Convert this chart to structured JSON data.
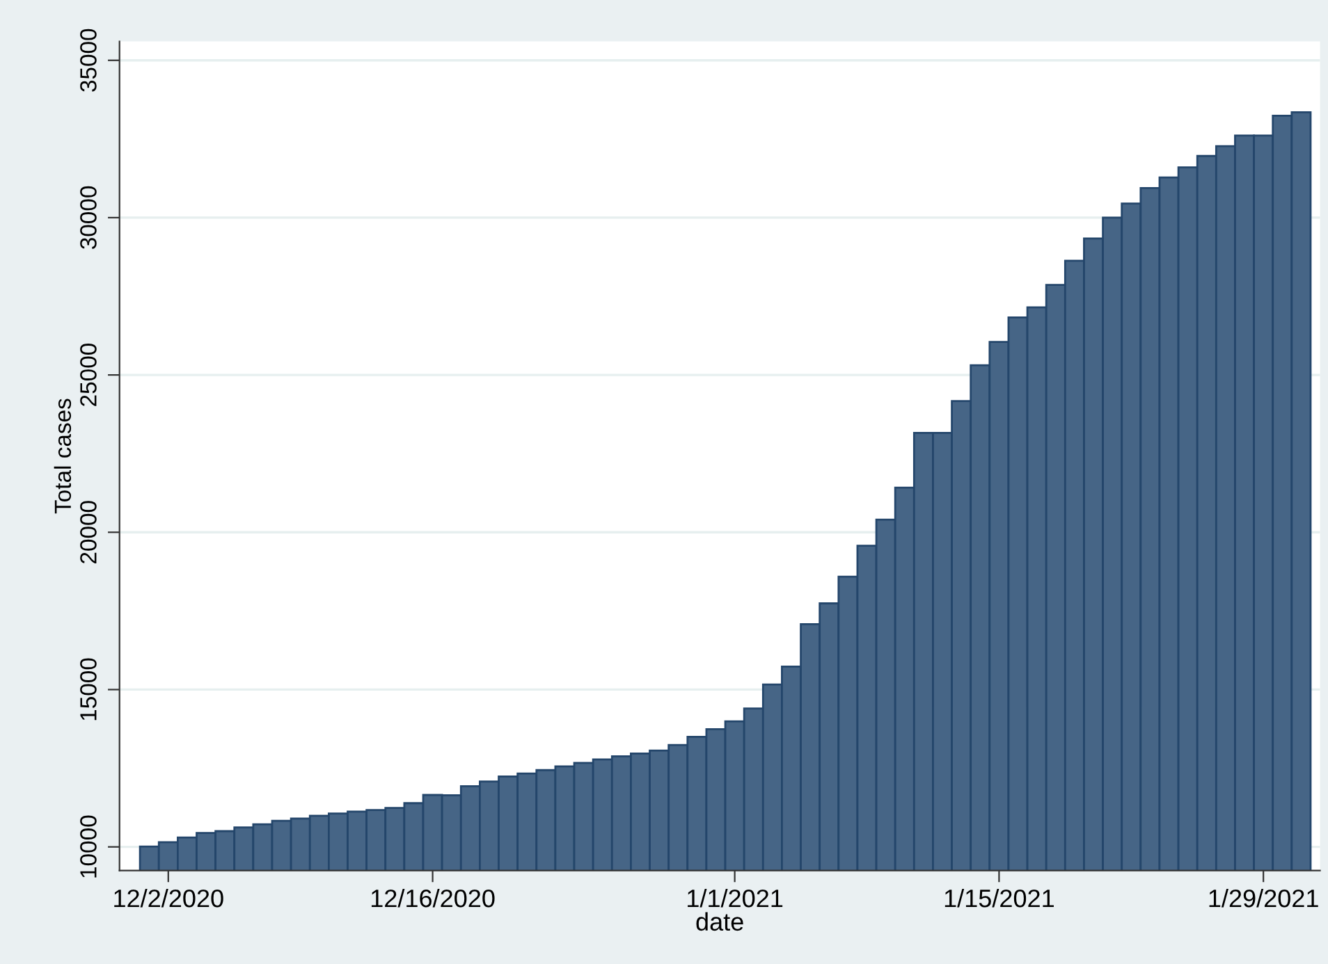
{
  "chart_data": {
    "type": "bar",
    "xlabel": "date",
    "ylabel": "Total cases",
    "color": "#466586",
    "x": [
      "2020-12-01",
      "2020-12-02",
      "2020-12-03",
      "2020-12-04",
      "2020-12-05",
      "2020-12-06",
      "2020-12-07",
      "2020-12-08",
      "2020-12-09",
      "2020-12-10",
      "2020-12-11",
      "2020-12-12",
      "2020-12-13",
      "2020-12-14",
      "2020-12-15",
      "2020-12-16",
      "2020-12-17",
      "2020-12-18",
      "2020-12-19",
      "2020-12-20",
      "2020-12-21",
      "2020-12-22",
      "2020-12-23",
      "2020-12-24",
      "2020-12-25",
      "2020-12-26",
      "2020-12-27",
      "2020-12-28",
      "2020-12-29",
      "2020-12-30",
      "2020-12-31",
      "2021-01-01",
      "2021-01-02",
      "2021-01-03",
      "2021-01-04",
      "2021-01-05",
      "2021-01-06",
      "2021-01-07",
      "2021-01-08",
      "2021-01-09",
      "2021-01-10",
      "2021-01-11",
      "2021-01-12",
      "2021-01-13",
      "2021-01-14",
      "2021-01-15",
      "2021-01-16",
      "2021-01-17",
      "2021-01-18",
      "2021-01-19",
      "2021-01-20",
      "2021-01-21",
      "2021-01-22",
      "2021-01-23",
      "2021-01-24",
      "2021-01-25",
      "2021-01-26",
      "2021-01-27",
      "2021-01-28",
      "2021-01-29",
      "2021-01-30",
      "2021-01-31"
    ],
    "values": [
      10010,
      10150,
      10300,
      10440,
      10500,
      10620,
      10720,
      10830,
      10900,
      10990,
      11060,
      11120,
      11170,
      11240,
      11390,
      11650,
      11640,
      11930,
      12080,
      12240,
      12330,
      12440,
      12560,
      12670,
      12780,
      12880,
      12970,
      13060,
      13240,
      13500,
      13740,
      13990,
      14400,
      15160,
      15730,
      17080,
      17740,
      18590,
      19570,
      20400,
      21420,
      23160,
      23160,
      24170,
      25310,
      26050,
      26830,
      27150,
      27860,
      28630,
      29340,
      30000,
      30450,
      30940,
      31280,
      31600,
      31960,
      32270,
      32610,
      32610,
      33240,
      33350
    ],
    "xlim": [
      "2020-11-29T10:00",
      "2021-02-01"
    ],
    "xticks": [
      {
        "value": "2020-12-02",
        "label": "12/2/2020"
      },
      {
        "value": "2020-12-16",
        "label": "12/16/2020"
      },
      {
        "value": "2021-01-01",
        "label": "1/1/2021"
      },
      {
        "value": "2021-01-15",
        "label": "1/15/2021"
      },
      {
        "value": "2021-01-29",
        "label": "1/29/2021"
      }
    ],
    "ylim": [
      9250,
      35600
    ],
    "yticks": [
      10000,
      15000,
      20000,
      25000,
      30000,
      35000
    ],
    "grid": "y"
  }
}
